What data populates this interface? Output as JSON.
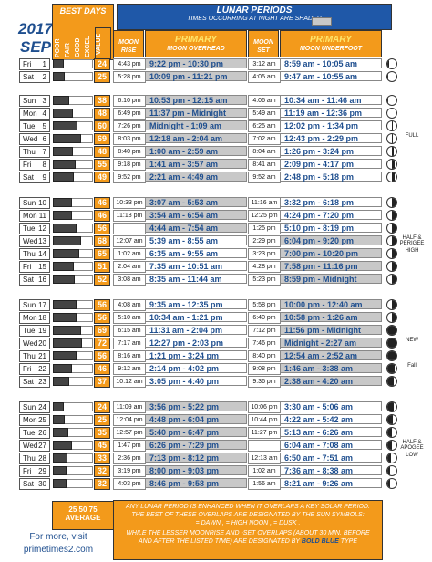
{
  "header": {
    "year": "2017",
    "month": "SEP",
    "best_days": "BEST DAYS",
    "ratings": [
      "POOR",
      "FAIR",
      "GOOD",
      "EXCEL"
    ],
    "value": "VALUE",
    "lunar_title": "LUNAR PERIODS",
    "lunar_sub": "TIMES OCCURRING AT NIGHT ARE SHADED",
    "moon_rise": "MOON RISE",
    "primary_overhead": "PRIMARY",
    "moon_overhead": "MOON OVERHEAD",
    "moon_set": "MOON SET",
    "primary_underfoot": "PRIMARY",
    "moon_underfoot": "MOON UNDERFOOT"
  },
  "rows": [
    {
      "dn": "Fri",
      "dd": "1",
      "val": "24",
      "mr": "4:43 pm",
      "mo": "9:22 pm - 10:30 pm",
      "ms": "3:12 am",
      "mu": "8:59 am - 10:05 am",
      "phase": ""
    },
    {
      "dn": "Sat",
      "dd": "2",
      "val": "25",
      "mr": "5:28 pm",
      "mo": "10:09 pm - 11:21 pm",
      "ms": "4:05 am",
      "mu": "9:47 am - 10:55 am",
      "phase": ""
    },
    {
      "dn": "Sun",
      "dd": "3",
      "val": "38",
      "mr": "6:10 pm",
      "mo": "10:53 pm - 12:15 am",
      "ms": "4:06 am",
      "mu": "10:34 am - 11:46 am",
      "phase": ""
    },
    {
      "dn": "Mon",
      "dd": "4",
      "val": "48",
      "mr": "6:49 pm",
      "mo": "11:37 pm - Midnight",
      "ms": "5:49 am",
      "mu": "11:19 am - 12:36 pm",
      "phase": ""
    },
    {
      "dn": "Tue",
      "dd": "5",
      "val": "60",
      "mr": "7:26 pm",
      "mo": "Midnight - 1:09 am",
      "ms": "6:25 am",
      "mu": "12:02 pm - 1:34 pm",
      "phase": ""
    },
    {
      "dn": "Wed",
      "dd": "6",
      "val": "69",
      "mr": "8:03 pm",
      "mo": "12:18 am - 2:04 am",
      "ms": "7:02 am",
      "mu": "12:43 pm - 2:29 pm",
      "phase": "FULL"
    },
    {
      "dn": "Thu",
      "dd": "7",
      "val": "48",
      "mr": "8:40 pm",
      "mo": "1:00 am - 2:59 am",
      "ms": "8:04 am",
      "mu": "1:26 pm - 3:24 pm",
      "phase": ""
    },
    {
      "dn": "Fri",
      "dd": "8",
      "val": "55",
      "mr": "9:18 pm",
      "mo": "1:41 am - 3:57 am",
      "ms": "8:41 am",
      "mu": "2:09 pm - 4:17 pm",
      "phase": ""
    },
    {
      "dn": "Sat",
      "dd": "9",
      "val": "49",
      "mr": "9:52 pm",
      "mo": "2:21 am - 4:49 am",
      "ms": "9:52 am",
      "mu": "2:48 pm - 5:18 pm",
      "phase": ""
    },
    {
      "dn": "Sun",
      "dd": "10",
      "val": "46",
      "mr": "10:33 pm",
      "mo": "3:07 am - 5:53 am",
      "ms": "11:16 am",
      "mu": "3:32 pm - 6:18 pm",
      "phase": ""
    },
    {
      "dn": "Mon",
      "dd": "11",
      "val": "46",
      "mr": "11:18 pm",
      "mo": "3:54 am - 6:54 am",
      "ms": "12:25 pm",
      "mu": "4:24 pm - 7:20 pm",
      "phase": ""
    },
    {
      "dn": "Tue",
      "dd": "12",
      "val": "56",
      "mr": "",
      "mo": "4:44 am - 7:54 am",
      "ms": "1:25 pm",
      "mu": "5:10 pm - 8:19 pm",
      "phase": ""
    },
    {
      "dn": "Wed",
      "dd": "13",
      "val": "68",
      "mr": "12:07 am",
      "mo": "5:39 am - 8:55 am",
      "ms": "2:29 pm",
      "mu": "6:04 pm - 9:20 pm",
      "phase": "HALF & PERIGEE"
    },
    {
      "dn": "Thu",
      "dd": "14",
      "val": "65",
      "mr": "1:02 am",
      "mo": "6:35 am - 9:55 am",
      "ms": "3:23 pm",
      "mu": "7:00 pm - 10:20 pm",
      "phase": "HIGH"
    },
    {
      "dn": "Fri",
      "dd": "15",
      "val": "51",
      "mr": "2:04 am",
      "mo": "7:35 am - 10:51 am",
      "ms": "4:28 pm",
      "mu": "7:58 pm - 11:16 pm",
      "phase": ""
    },
    {
      "dn": "Sat",
      "dd": "16",
      "val": "52",
      "mr": "3:08 am",
      "mo": "8:35 am - 11:44 am",
      "ms": "5:23 pm",
      "mu": "8:59 pm - Midnight",
      "phase": ""
    },
    {
      "dn": "Sun",
      "dd": "17",
      "val": "56",
      "mr": "4:08 am",
      "mo": "9:35 am - 12:35 pm",
      "ms": "5:58 pm",
      "mu": "10:00 pm - 12:40 am",
      "phase": ""
    },
    {
      "dn": "Mon",
      "dd": "18",
      "val": "56",
      "mr": "5:10 am",
      "mo": "10:34 am - 1:21 pm",
      "ms": "6:40 pm",
      "mu": "10:58 pm - 1:26 am",
      "phase": ""
    },
    {
      "dn": "Tue",
      "dd": "19",
      "val": "69",
      "mr": "6:15 am",
      "mo": "11:31 am - 2:04 pm",
      "ms": "7:12 pm",
      "mu": "11:56 pm - Midnight",
      "phase": ""
    },
    {
      "dn": "Wed",
      "dd": "20",
      "val": "72",
      "mr": "7:17 am",
      "mo": "12:27 pm - 2:03 pm",
      "ms": "7:46 pm",
      "mu": "Midnight - 2:27 am",
      "phase": "NEW"
    },
    {
      "dn": "Thu",
      "dd": "21",
      "val": "56",
      "mr": "8:16 am",
      "mo": "1:21 pm - 3:24 pm",
      "ms": "8:40 pm",
      "mu": "12:54 am - 2:52 am",
      "phase": ""
    },
    {
      "dn": "Fri",
      "dd": "22",
      "val": "46",
      "mr": "9:12 am",
      "mo": "2:14 pm - 4:02 pm",
      "ms": "9:08 pm",
      "mu": "1:46 am - 3:38 am",
      "phase": "Fall"
    },
    {
      "dn": "Sat",
      "dd": "23",
      "val": "37",
      "mr": "10:12 am",
      "mo": "3:05 pm - 4:40 pm",
      "ms": "9:36 pm",
      "mu": "2:38 am - 4:20 am",
      "phase": ""
    },
    {
      "dn": "Sun",
      "dd": "24",
      "val": "24",
      "mr": "11:09 am",
      "mo": "3:56 pm - 5:22 pm",
      "ms": "10:06 pm",
      "mu": "3:30 am - 5:06 am",
      "phase": ""
    },
    {
      "dn": "Mon",
      "dd": "25",
      "val": "25",
      "mr": "12:04 pm",
      "mo": "4:48 pm - 6:04 pm",
      "ms": "10:44 pm",
      "mu": "4:22 am - 5:42 am",
      "phase": ""
    },
    {
      "dn": "Tue",
      "dd": "26",
      "val": "35",
      "mr": "12:57 pm",
      "mo": "5:40 pm - 6:47 pm",
      "ms": "11:27 pm",
      "mu": "5:13 am - 6:26 am",
      "phase": ""
    },
    {
      "dn": "Wed",
      "dd": "27",
      "val": "45",
      "mr": "1:47 pm",
      "mo": "6:26 pm - 7:29 pm",
      "ms": "",
      "mu": "6:04 am - 7:08 am",
      "phase": "HALF & APOGEE"
    },
    {
      "dn": "Thu",
      "dd": "28",
      "val": "33",
      "mr": "2:36 pm",
      "mo": "7:13 pm - 8:12 pm",
      "ms": "12:13 am",
      "mu": "6:50 am - 7:51 am",
      "phase": "LOW"
    },
    {
      "dn": "Fri",
      "dd": "29",
      "val": "32",
      "mr": "3:19 pm",
      "mo": "8:00 pm - 9:03 pm",
      "ms": "1:02 am",
      "mu": "7:36 am - 8:38 am",
      "phase": ""
    },
    {
      "dn": "Sat",
      "dd": "30",
      "val": "32",
      "mr": "4:03 pm",
      "mo": "8:46 pm - 9:58 pm",
      "ms": "1:56 am",
      "mu": "8:21 am - 9:26 am",
      "phase": ""
    }
  ],
  "footer": {
    "avg_nums": "25 50 75",
    "avg_label": "AVERAGE",
    "site1": "For more, visit",
    "site2": "primetimes2.com",
    "note1": "ANY LUNAR PERIOD IS ENHANCED WHEN IT OVERLAPS A KEY SOLAR PERIOD.",
    "note2": "THE BEST OF THESE OVERLAPS ARE DESIGNATED BY THE SUN SYMBOLS:",
    "note3": "= DAWN , = HIGH NOON , = DUSK .",
    "note4": "WHILE THE LESSER MOONRISE AND -SET OVERLAPS (ABOUT 30 MIN. BEFORE",
    "note5": "AND AFTER THE LISTED TIME) ARE DESIGNATED BY",
    "note6": "BOLD BLUE",
    "note7": "TYPE"
  }
}
